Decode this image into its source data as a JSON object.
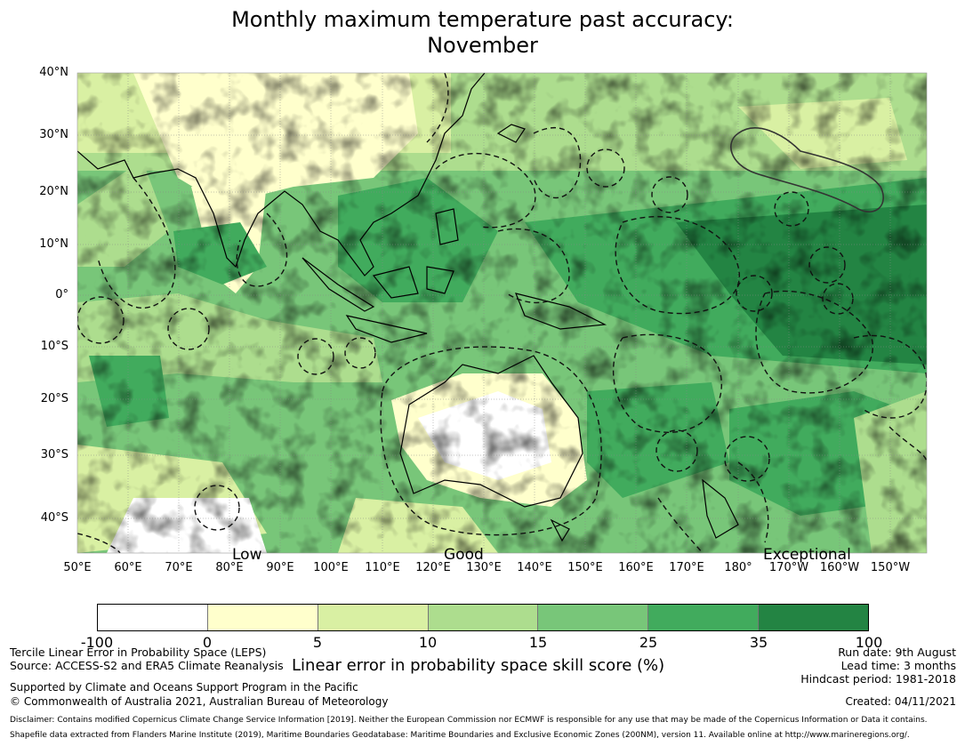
{
  "title": {
    "line1": "Monthly maximum temperature past accuracy:",
    "line2": "November"
  },
  "map": {
    "lat_labels": [
      "40°N",
      "30°N",
      "20°N",
      "10°N",
      "0°",
      "10°S",
      "20°S",
      "30°S",
      "40°S"
    ],
    "lon_labels": [
      "50°E",
      "60°E",
      "70°E",
      "80°E",
      "90°E",
      "100°E",
      "110°E",
      "120°E",
      "130°E",
      "140°E",
      "150°E",
      "160°E",
      "170°E",
      "180°",
      "170°W",
      "160°W",
      "150°W"
    ],
    "region_labels": [
      "Low",
      "Good",
      "Exceptional"
    ]
  },
  "colorbar": {
    "ticks": [
      "-100",
      "0",
      "5",
      "10",
      "15",
      "25",
      "35",
      "100"
    ],
    "colors": [
      "#ffffff",
      "#ffffcc",
      "#d9f0a3",
      "#addd8e",
      "#78c679",
      "#41ab5d",
      "#238443"
    ],
    "label": "Linear error in probability space skill score (%)"
  },
  "footer": {
    "left1": "Tercile Linear Error in Probability Space (LEPS)",
    "left2": "Source: ACCESS-S2 and ERA5 Climate Reanalysis",
    "left3": "Supported by Climate and Oceans Support Program in the Pacific",
    "left4": "© Commonwealth of Australia 2021, Australian Bureau of Meteorology",
    "right1": "Run date: 9th August",
    "right2": "Lead time: 3 months",
    "right3": "Hindcast period: 1981-2018",
    "created": "Created: 04/11/2021",
    "disclaimer1": "Disclaimer: Contains modified Copernicus Climate Change Service Information [2019]. Neither the European Commission nor ECMWF is responsible for any use that may be made of the Copernicus Information or Data it contains.",
    "disclaimer2": "Shapefile data extracted from Flanders Marine Institute (2019), Maritime Boundaries Geodatabase: Maritime Boundaries and Exclusive Economic Zones (200NM), version 11. Available online at http://www.marineregions.org/."
  }
}
